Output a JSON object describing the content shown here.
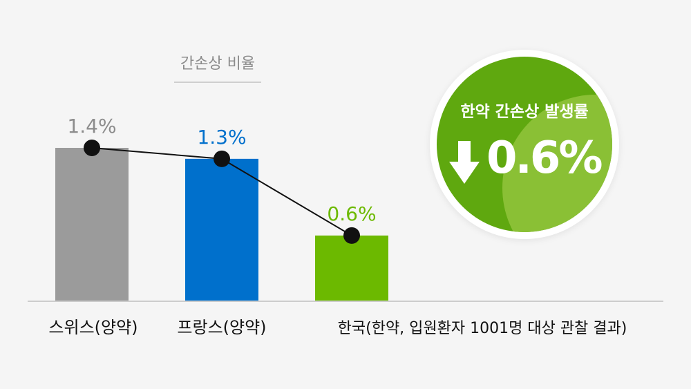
{
  "subtitle": "간손상 비율",
  "badge": {
    "title": "한약 간손상 발생률",
    "value": "0.6%",
    "arrow_icon": "arrow-down-icon"
  },
  "chart_data": {
    "type": "bar",
    "title": "",
    "categories": [
      "스위스(양약)",
      "프랑스(양약)",
      "한국(한약, 입원환자 1001명 대상 관찰 결과)"
    ],
    "values": [
      1.4,
      1.3,
      0.6
    ],
    "value_labels": [
      "1.4%",
      "1.3%",
      "0.6%"
    ],
    "colors": [
      "#9b9b9b",
      "#0070cc",
      "#6cb900"
    ],
    "label_colors": [
      "#8c8c8c",
      "#0070cc",
      "#6cb900"
    ],
    "overlay_line": true,
    "line_color": "#111111",
    "ylim": [
      0,
      1.4
    ],
    "grid": false,
    "legend": "none"
  }
}
